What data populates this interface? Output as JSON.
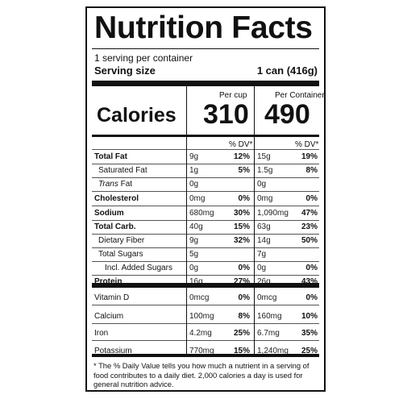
{
  "title": "Nutrition Facts",
  "servings": "1 serving per container",
  "serving_size_label": "Serving size",
  "serving_size_value": "1 can (416g)",
  "col_header_1": "Per cup",
  "col_header_2": "Per Container",
  "calories_label": "Calories",
  "calories_1": "310",
  "calories_2": "490",
  "dv_header": "% DV*",
  "rows": [
    {
      "label": "Total Fat",
      "bold": true,
      "indent": 0,
      "a1": "9g",
      "d1": "12%",
      "a2": "15g",
      "d2": "19%"
    },
    {
      "label": "Saturated Fat",
      "bold": false,
      "indent": 1,
      "a1": "1g",
      "d1": "5%",
      "a2": "1.5g",
      "d2": "8%"
    },
    {
      "label": "Trans Fat",
      "bold": false,
      "indent": 1,
      "italic_prefix": "Trans",
      "a1": "0g",
      "d1": "",
      "a2": "0g",
      "d2": ""
    },
    {
      "label": "Cholesterol",
      "bold": true,
      "indent": 0,
      "a1": "0mg",
      "d1": "0%",
      "a2": "0mg",
      "d2": "0%"
    },
    {
      "label": "Sodium",
      "bold": true,
      "indent": 0,
      "a1": "680mg",
      "d1": "30%",
      "a2": "1,090mg",
      "d2": "47%"
    },
    {
      "label": "Total Carb.",
      "bold": true,
      "indent": 0,
      "a1": "40g",
      "d1": "15%",
      "a2": "63g",
      "d2": "23%"
    },
    {
      "label": "Dietary Fiber",
      "bold": false,
      "indent": 1,
      "a1": "9g",
      "d1": "32%",
      "a2": "14g",
      "d2": "50%"
    },
    {
      "label": "Total Sugars",
      "bold": false,
      "indent": 1,
      "a1": "5g",
      "d1": "",
      "a2": "7g",
      "d2": ""
    },
    {
      "label": "Incl. Added Sugars",
      "bold": false,
      "indent": 2,
      "a1": "0g",
      "d1": "0%",
      "a2": "0g",
      "d2": "0%"
    },
    {
      "label": "Protein",
      "bold": true,
      "indent": 0,
      "a1": "16g",
      "d1": "27%",
      "a2": "26g",
      "d2": "43%"
    },
    {
      "label": "Vitamin D",
      "bold": false,
      "indent": 0,
      "a1": "0mcg",
      "d1": "0%",
      "a2": "0mcg",
      "d2": "0%"
    },
    {
      "label": "Calcium",
      "bold": false,
      "indent": 0,
      "a1": "100mg",
      "d1": "8%",
      "a2": "160mg",
      "d2": "10%"
    },
    {
      "label": "Iron",
      "bold": false,
      "indent": 0,
      "a1": "4.2mg",
      "d1": "25%",
      "a2": "6.7mg",
      "d2": "35%"
    },
    {
      "label": "Potassium",
      "bold": false,
      "indent": 0,
      "a1": "770mg",
      "d1": "15%",
      "a2": "1,240mg",
      "d2": "25%"
    }
  ],
  "footnote": "* The % Daily Value tells you how much a nutrient in a serving of food contributes to a daily diet. 2,000 calories a day is used for general nutrition advice."
}
